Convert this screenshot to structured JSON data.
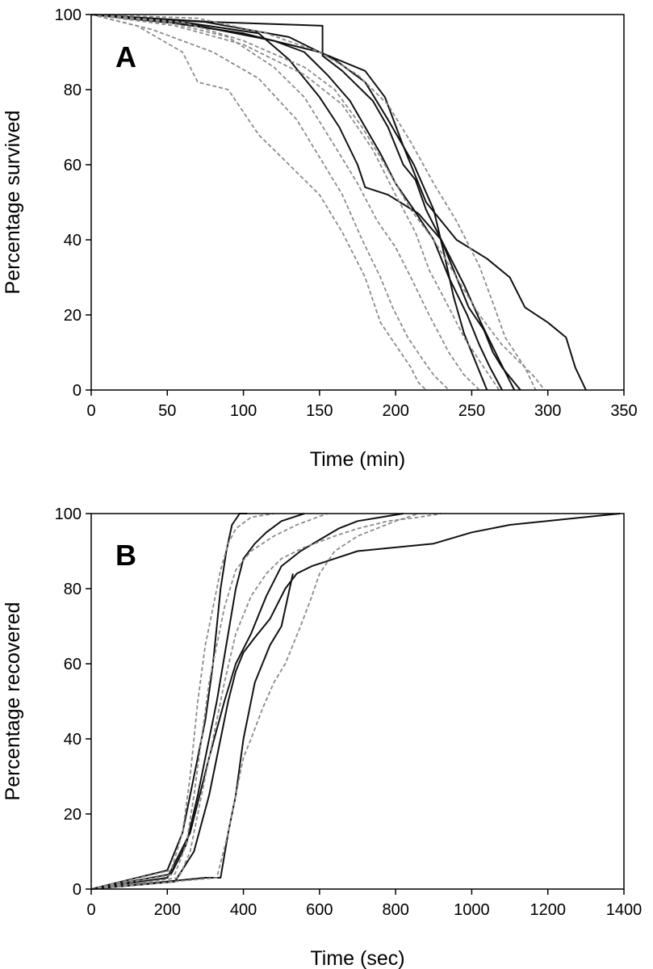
{
  "colors": {
    "solid": "#111111",
    "dashed": "#8c8c8c",
    "axis": "#000000"
  },
  "chart_data": [
    {
      "type": "line",
      "panel": "A",
      "xlabel": "Time (min)",
      "ylabel": "Percentage survived",
      "xlim": [
        0,
        350
      ],
      "ylim": [
        0,
        100
      ],
      "xticks": [
        0,
        50,
        100,
        150,
        200,
        250,
        300,
        350
      ],
      "yticks": [
        0,
        20,
        40,
        60,
        80,
        100
      ],
      "series": [
        {
          "style": "solid",
          "x": [
            0,
            80,
            152,
            152,
            165,
            185,
            195,
            205,
            213,
            220,
            230,
            240,
            248,
            258,
            264,
            270,
            278,
            282
          ],
          "y": [
            100,
            98,
            97,
            89,
            85,
            77,
            70,
            60,
            56,
            48,
            40,
            30,
            22,
            16,
            10,
            6,
            2,
            0
          ]
        },
        {
          "style": "solid",
          "x": [
            0,
            70,
            120,
            140,
            155,
            170,
            190,
            200,
            212,
            225,
            235,
            247,
            255,
            262,
            270
          ],
          "y": [
            100,
            97,
            93,
            90,
            84,
            77,
            63,
            55,
            48,
            40,
            30,
            20,
            12,
            6,
            0
          ]
        },
        {
          "style": "solid",
          "x": [
            0,
            60,
            110,
            130,
            150,
            163,
            175,
            180,
            195,
            215,
            230,
            245,
            256,
            268,
            278
          ],
          "y": [
            100,
            98,
            95,
            88,
            78,
            70,
            60,
            54,
            52,
            47,
            40,
            28,
            18,
            8,
            0
          ]
        },
        {
          "style": "solid",
          "x": [
            0,
            50,
            100,
            150,
            180,
            193,
            205,
            220,
            240,
            260,
            275,
            285,
            300,
            312,
            318,
            325
          ],
          "y": [
            100,
            98,
            95,
            90,
            85,
            78,
            65,
            50,
            40,
            35,
            30,
            22,
            18,
            14,
            6,
            0
          ]
        },
        {
          "style": "solid",
          "x": [
            0,
            75,
            130,
            160,
            180,
            195,
            212,
            225,
            232,
            238,
            245,
            252,
            260
          ],
          "y": [
            100,
            98,
            94,
            88,
            82,
            72,
            60,
            48,
            36,
            25,
            15,
            8,
            0
          ]
        },
        {
          "style": "dashed",
          "x": [
            0,
            30,
            60,
            70,
            90,
            110,
            125,
            150,
            165,
            180,
            190,
            200,
            210,
            215,
            220
          ],
          "y": [
            100,
            97,
            90,
            82,
            80,
            68,
            62,
            52,
            42,
            30,
            18,
            12,
            6,
            2,
            0
          ]
        },
        {
          "style": "dashed",
          "x": [
            0,
            40,
            80,
            110,
            135,
            150,
            165,
            178,
            190,
            198,
            208,
            218,
            225,
            235
          ],
          "y": [
            100,
            96,
            90,
            83,
            72,
            62,
            52,
            40,
            30,
            22,
            14,
            8,
            4,
            0
          ]
        },
        {
          "style": "dashed",
          "x": [
            0,
            50,
            90,
            120,
            140,
            160,
            175,
            188,
            200,
            210,
            222,
            235,
            245,
            255
          ],
          "y": [
            100,
            98,
            94,
            86,
            78,
            65,
            55,
            45,
            38,
            30,
            20,
            10,
            4,
            0
          ]
        },
        {
          "style": "dashed",
          "x": [
            0,
            60,
            100,
            140,
            160,
            178,
            190,
            200,
            210,
            225,
            240,
            255,
            270,
            280,
            290,
            298
          ],
          "y": [
            100,
            98,
            93,
            86,
            80,
            70,
            62,
            55,
            48,
            40,
            30,
            20,
            12,
            8,
            4,
            0
          ]
        },
        {
          "style": "dashed",
          "x": [
            0,
            70,
            115,
            150,
            175,
            195,
            210,
            225,
            240,
            255,
            265,
            272,
            285,
            292
          ],
          "y": [
            100,
            99,
            95,
            90,
            84,
            76,
            66,
            55,
            45,
            33,
            22,
            14,
            6,
            0
          ]
        },
        {
          "style": "dashed",
          "x": [
            0,
            55,
            100,
            140,
            165,
            185,
            200,
            213,
            222,
            235,
            245,
            258,
            268
          ],
          "y": [
            100,
            97,
            92,
            84,
            76,
            64,
            52,
            42,
            32,
            22,
            14,
            6,
            0
          ]
        }
      ]
    },
    {
      "type": "line",
      "panel": "B",
      "xlabel": "Time (sec)",
      "ylabel": "Percentage recovered",
      "xlim": [
        0,
        1400
      ],
      "ylim": [
        0,
        100
      ],
      "xticks": [
        0,
        200,
        400,
        600,
        800,
        1000,
        1200,
        1400
      ],
      "yticks": [
        0,
        20,
        40,
        60,
        80,
        100
      ],
      "series": [
        {
          "style": "solid",
          "x": [
            0,
            200,
            240,
            270,
            300,
            320,
            340,
            355,
            370,
            390,
            410
          ],
          "y": [
            0,
            5,
            15,
            30,
            45,
            60,
            80,
            90,
            97,
            100,
            100
          ]
        },
        {
          "style": "solid",
          "x": [
            0,
            210,
            250,
            280,
            300,
            330,
            360,
            380,
            400,
            430,
            460,
            500,
            560
          ],
          "y": [
            0,
            4,
            12,
            25,
            35,
            50,
            68,
            80,
            88,
            92,
            95,
            98,
            100
          ]
        },
        {
          "style": "solid",
          "x": [
            0,
            200,
            260,
            310,
            350,
            380,
            420,
            460,
            500,
            550,
            600,
            650,
            700,
            760,
            820
          ],
          "y": [
            0,
            3,
            15,
            35,
            50,
            60,
            68,
            78,
            86,
            90,
            93,
            96,
            98,
            99,
            100
          ]
        },
        {
          "style": "solid",
          "x": [
            0,
            220,
            270,
            310,
            340,
            360,
            380,
            400,
            430,
            470,
            510,
            540,
            580,
            640,
            700,
            900,
            1000,
            1100,
            1390
          ],
          "y": [
            0,
            2,
            10,
            25,
            40,
            50,
            58,
            63,
            67,
            72,
            80,
            84,
            86,
            88,
            90,
            92,
            95,
            97,
            100
          ]
        },
        {
          "style": "solid",
          "x": [
            0,
            300,
            340,
            360,
            380,
            400,
            430,
            470,
            500,
            530
          ],
          "y": [
            0,
            3,
            3,
            15,
            25,
            40,
            55,
            65,
            70,
            84
          ]
        },
        {
          "style": "dashed",
          "x": [
            0,
            210,
            240,
            260,
            280,
            300,
            320,
            340,
            360,
            380,
            420,
            480
          ],
          "y": [
            0,
            5,
            15,
            30,
            50,
            65,
            75,
            85,
            92,
            96,
            99,
            100
          ]
        },
        {
          "style": "dashed",
          "x": [
            0,
            220,
            250,
            270,
            290,
            310,
            330,
            350,
            380,
            420,
            480,
            540,
            620
          ],
          "y": [
            0,
            4,
            12,
            25,
            40,
            55,
            65,
            75,
            85,
            90,
            94,
            97,
            100
          ]
        },
        {
          "style": "dashed",
          "x": [
            0,
            230,
            260,
            290,
            320,
            350,
            380,
            420,
            460,
            500,
            560,
            640,
            700,
            780,
            860,
            920
          ],
          "y": [
            0,
            3,
            10,
            25,
            40,
            55,
            68,
            78,
            84,
            88,
            91,
            94,
            96,
            98,
            99,
            100
          ]
        },
        {
          "style": "dashed",
          "x": [
            0,
            330,
            360,
            380,
            400,
            420,
            450,
            480,
            510,
            550,
            580,
            600,
            640,
            700,
            800,
            860
          ],
          "y": [
            0,
            3,
            15,
            25,
            35,
            40,
            48,
            55,
            60,
            70,
            78,
            84,
            90,
            94,
            98,
            100
          ]
        }
      ]
    }
  ]
}
